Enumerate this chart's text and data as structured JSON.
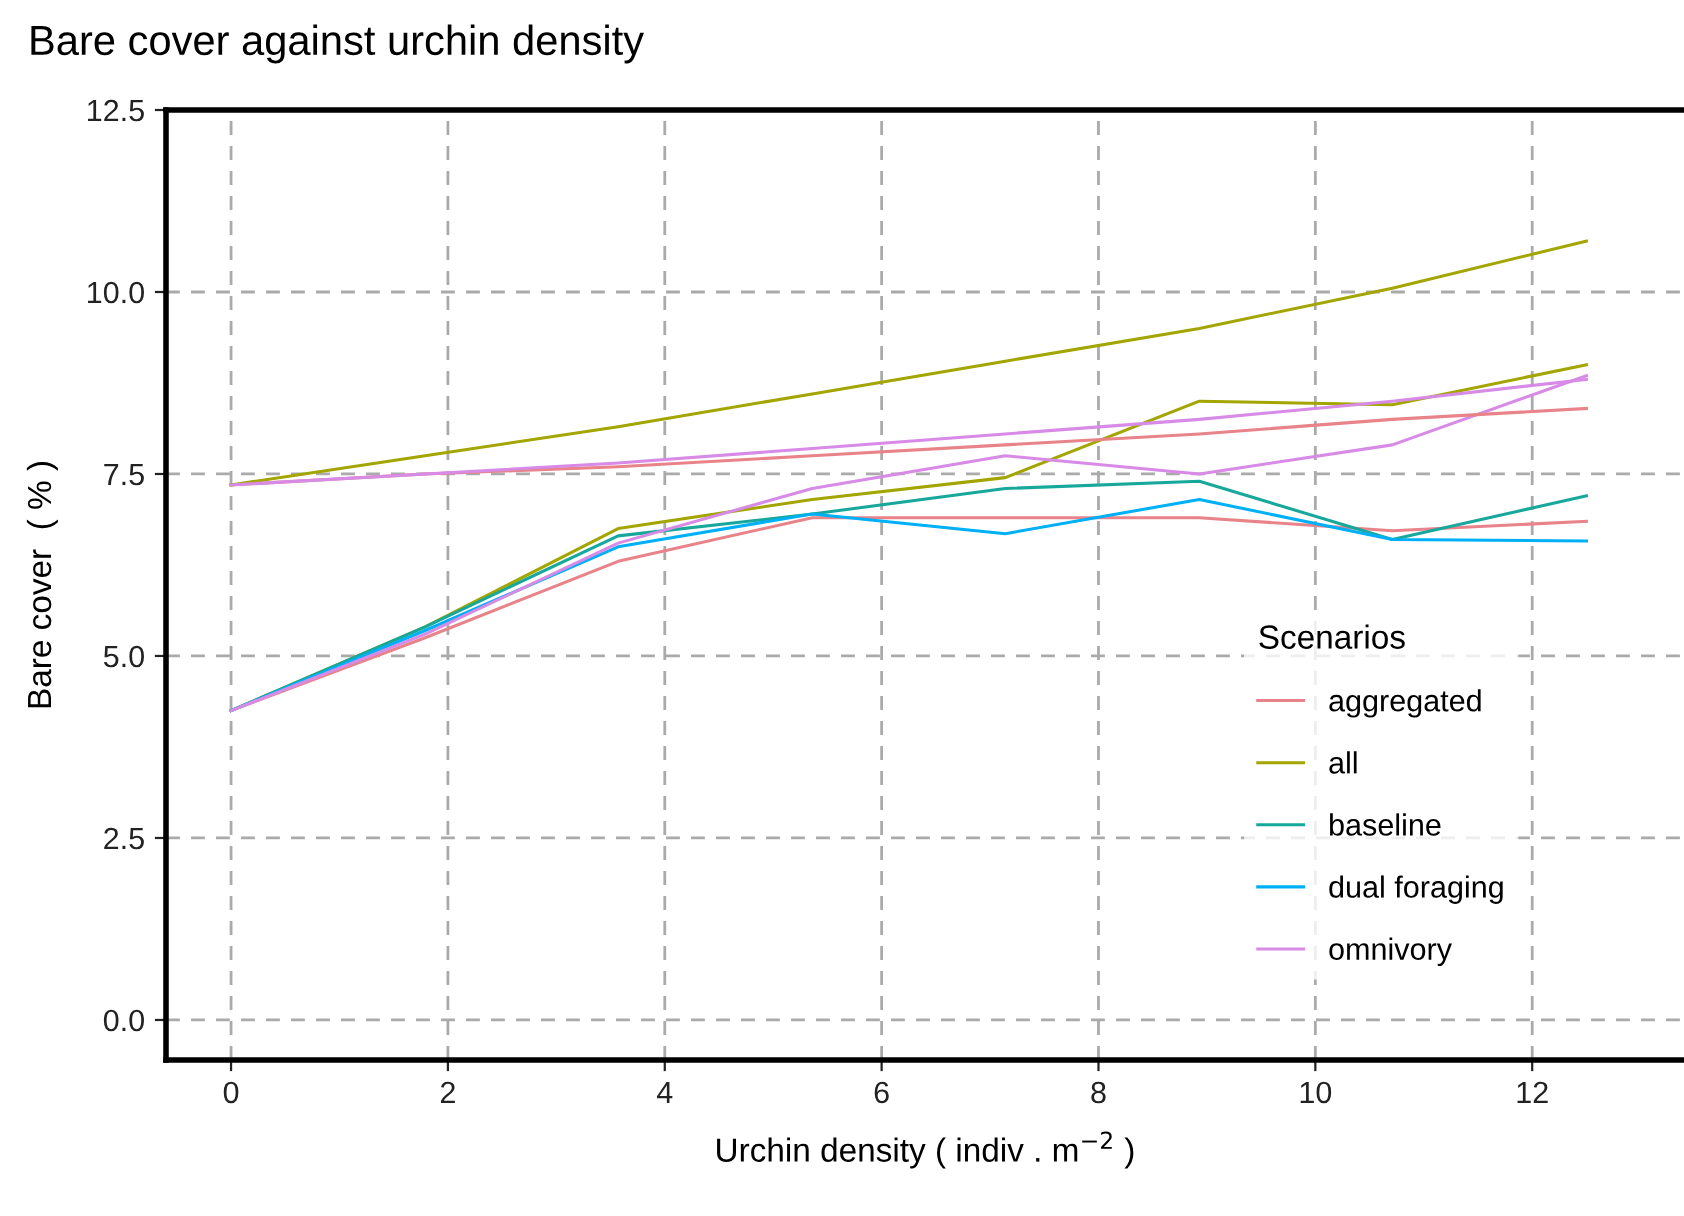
{
  "chart_data": {
    "type": "line",
    "title": "Bare cover against urchin density",
    "xlabel": "Urchin density ( indiv . m$^{−2}$ )",
    "ylabel": "Bare cover  ( % )",
    "legend_title": "Scenarios",
    "x": [
      0,
      1.79,
      3.57,
      5.36,
      7.14,
      8.93,
      10.71,
      12.5
    ],
    "series": [
      {
        "name": "aggregated",
        "color": "#e8838a",
        "values": [
          4.25,
          5.25,
          6.3,
          6.9,
          6.9,
          6.9,
          6.72,
          6.85
        ]
      },
      {
        "name": "all",
        "color": "#a3a500",
        "values": [
          4.25,
          5.4,
          6.75,
          7.15,
          7.45,
          8.5,
          8.45,
          9.0
        ]
      },
      {
        "name": "baseline",
        "color": "#17a89b",
        "values": [
          4.25,
          5.4,
          6.65,
          6.95,
          7.3,
          7.4,
          6.6,
          7.2
        ]
      },
      {
        "name": "dual foraging",
        "color": "#00b0f6",
        "values": [
          4.25,
          5.35,
          6.5,
          6.95,
          6.68,
          7.15,
          6.6,
          6.58
        ]
      },
      {
        "name": "omnivory",
        "color": "#d78ae6",
        "values": [
          4.25,
          5.3,
          6.55,
          7.3,
          7.75,
          7.5,
          7.9,
          8.85
        ]
      },
      {
        "color": "#e8838a",
        "values": [
          7.35,
          7.5,
          7.6,
          7.75,
          7.9,
          8.05,
          8.25,
          8.4
        ]
      },
      {
        "color": "#a3a500",
        "values": [
          7.35,
          7.75,
          8.15,
          8.6,
          9.05,
          9.5,
          10.05,
          10.7
        ]
      },
      {
        "color": "#d78ae6",
        "values": [
          7.35,
          7.5,
          7.65,
          7.85,
          8.05,
          8.25,
          8.5,
          8.8
        ]
      }
    ],
    "xlim": [
      -0.6,
      13.4
    ],
    "ylim": [
      -0.55,
      12.5
    ],
    "xticks": [
      0,
      2,
      4,
      6,
      8,
      10,
      12
    ],
    "yticks": [
      {
        "value": 0,
        "label": "0.0"
      },
      {
        "value": 2.5,
        "label": "2.5"
      },
      {
        "value": 5,
        "label": "5.0"
      },
      {
        "value": 7.5,
        "label": "7.5"
      },
      {
        "value": 10,
        "label": "10.0"
      },
      {
        "value": 12.5,
        "label": "12.5"
      }
    ],
    "grid": true,
    "legend": "bottom right"
  }
}
